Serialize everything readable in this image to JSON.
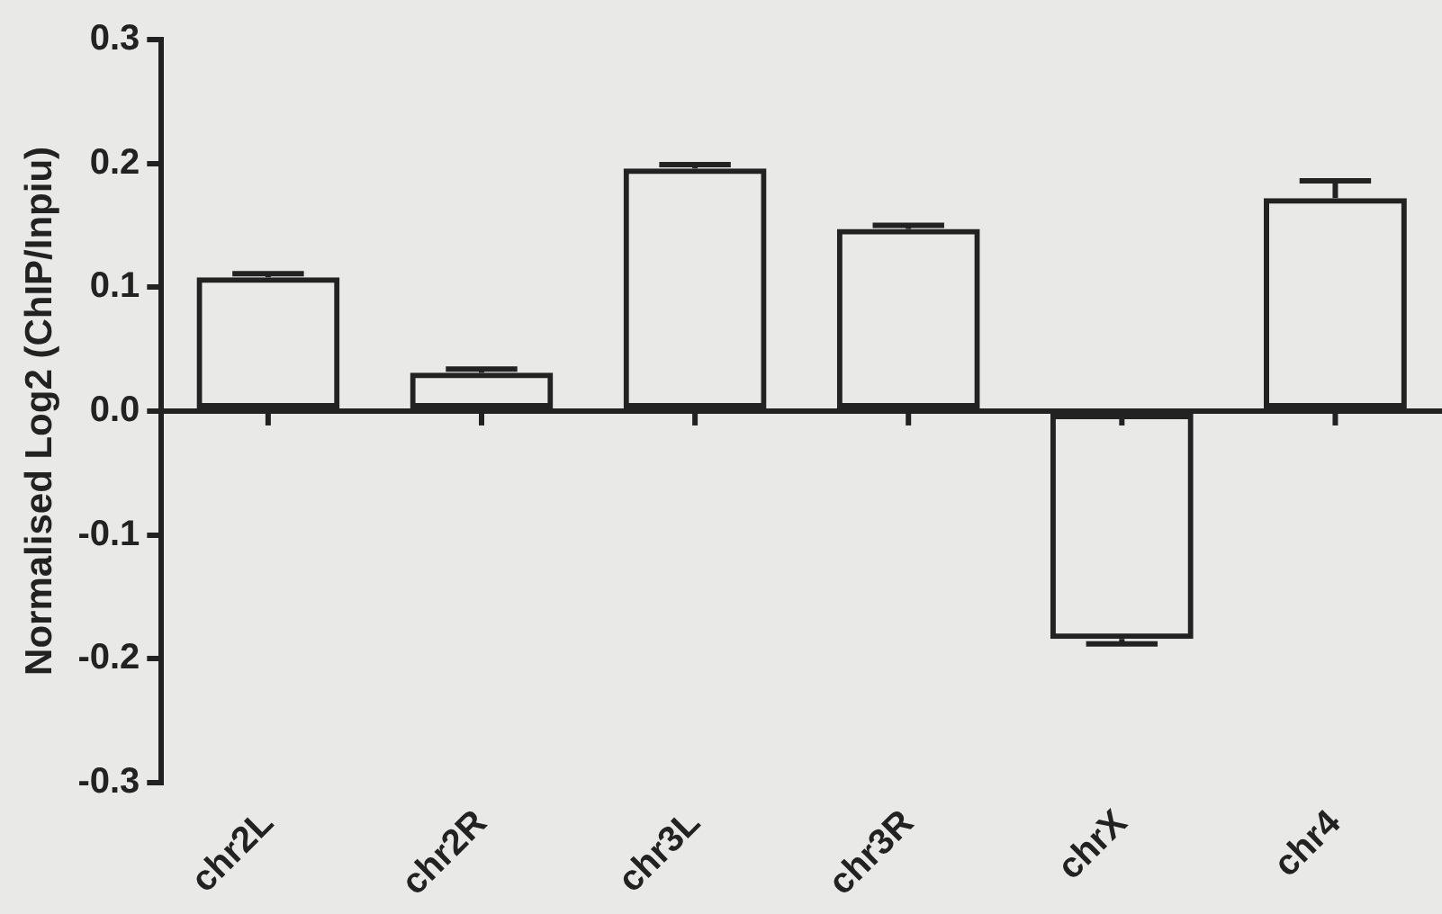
{
  "chart_data": {
    "type": "bar",
    "ylabel": "Normalised Log2 (ChIP/Inpiu)",
    "categories": [
      "chr2L",
      "chr2R",
      "chr3L",
      "chr3R",
      "chrX",
      "chr4"
    ],
    "values": [
      0.108,
      0.031,
      0.196,
      0.147,
      -0.184,
      0.172
    ],
    "errors": [
      [
        0.108,
        0.111
      ],
      [
        0.031,
        0.034
      ],
      [
        0.196,
        0.199
      ],
      [
        0.147,
        0.15
      ],
      [
        -0.188,
        -0.184
      ],
      [
        0.172,
        0.186
      ]
    ],
    "color": "#222222",
    "ylim": [
      -0.3,
      0.3
    ],
    "yticks": [
      {
        "value": -0.3,
        "label": "-0.3"
      },
      {
        "value": -0.2,
        "label": "-0.2"
      },
      {
        "value": -0.1,
        "label": "-0.1"
      },
      {
        "value": 0,
        "label": "0.0"
      },
      {
        "value": 0.1,
        "label": "0.1"
      },
      {
        "value": 0.2,
        "label": "0.2"
      },
      {
        "value": 0.3,
        "label": "0.3"
      }
    ],
    "legend": false
  }
}
